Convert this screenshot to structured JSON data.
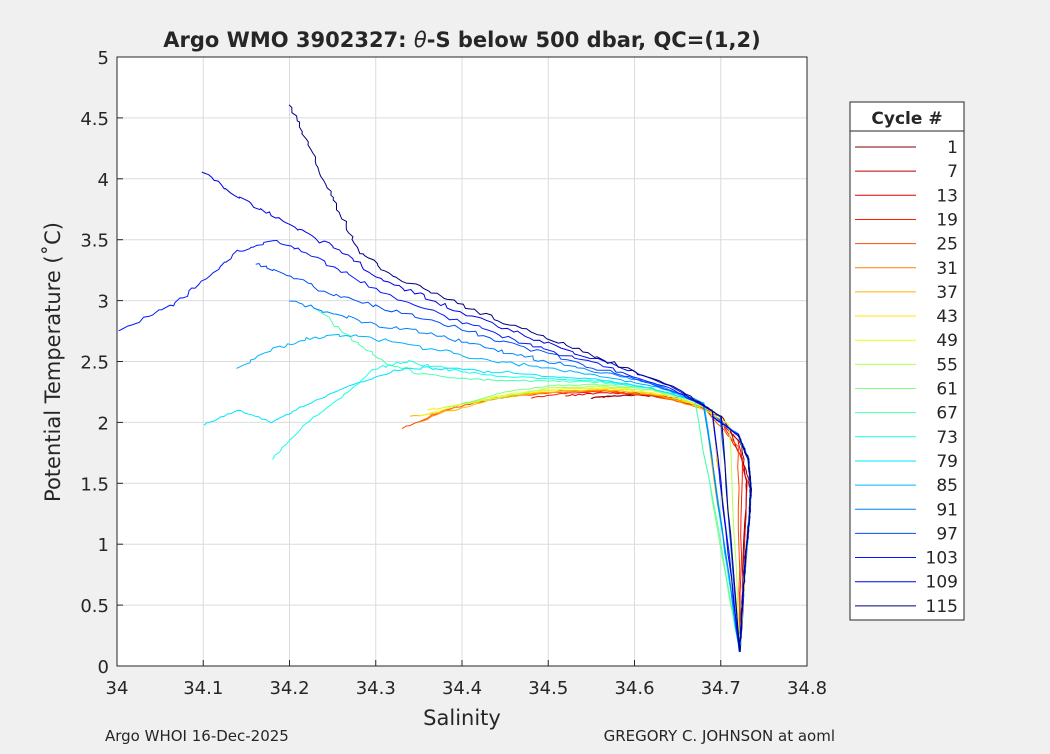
{
  "chart_data": {
    "type": "line",
    "title_parts": {
      "prefix": "Argo WMO 3902327: ",
      "theta": "θ",
      "suffix": "-S below 500 dbar,  QC=(1,2)"
    },
    "xlabel": "Salinity",
    "ylabel": "Potential Temperature (˚C)",
    "xlim": [
      34.0,
      34.8
    ],
    "ylim": [
      0,
      5
    ],
    "xticks": [
      "34",
      "34.1",
      "34.2",
      "34.3",
      "34.4",
      "34.5",
      "34.6",
      "34.7",
      "34.8"
    ],
    "yticks": [
      "0",
      "0.5",
      "1",
      "1.5",
      "2",
      "2.5",
      "3",
      "3.5",
      "4",
      "4.5",
      "5"
    ],
    "grid": true,
    "legend": {
      "title": "Cycle #",
      "position": "outside-right",
      "entries": [
        {
          "label": "1",
          "color": "#800000"
        },
        {
          "label": "7",
          "color": "#b30000"
        },
        {
          "label": "13",
          "color": "#e60000"
        },
        {
          "label": "19",
          "color": "#ff1a00"
        },
        {
          "label": "25",
          "color": "#ff4d00"
        },
        {
          "label": "31",
          "color": "#ff8000"
        },
        {
          "label": "37",
          "color": "#ffb300"
        },
        {
          "label": "43",
          "color": "#ffe600"
        },
        {
          "label": "49",
          "color": "#e6ff1a"
        },
        {
          "label": "55",
          "color": "#b3ff4d"
        },
        {
          "label": "61",
          "color": "#80ff80"
        },
        {
          "label": "67",
          "color": "#4dffb3"
        },
        {
          "label": "73",
          "color": "#1affe6"
        },
        {
          "label": "79",
          "color": "#00e6ff"
        },
        {
          "label": "85",
          "color": "#00b3ff"
        },
        {
          "label": "91",
          "color": "#0080ff"
        },
        {
          "label": "97",
          "color": "#004dff"
        },
        {
          "label": "103",
          "color": "#001aff"
        },
        {
          "label": "109",
          "color": "#0000e6"
        },
        {
          "label": "115",
          "color": "#000080"
        }
      ]
    },
    "deep_branch": [
      [
        34.722,
        0.12
      ],
      [
        34.725,
        0.5
      ],
      [
        34.729,
        0.9
      ],
      [
        34.733,
        1.2
      ],
      [
        34.735,
        1.45
      ],
      [
        34.732,
        1.7
      ],
      [
        34.72,
        1.9
      ],
      [
        34.69,
        2.05
      ],
      [
        34.64,
        2.18
      ],
      [
        34.58,
        2.28
      ]
    ],
    "series": [
      {
        "name": "1",
        "values": [
          [
            34.55,
            2.2
          ],
          [
            34.58,
            2.22
          ],
          [
            34.62,
            2.22
          ],
          [
            34.66,
            2.18
          ],
          [
            34.7,
            2.05
          ],
          [
            34.725,
            1.8
          ],
          [
            34.73,
            1.45
          ]
        ]
      },
      {
        "name": "7",
        "values": [
          [
            34.55,
            2.2
          ],
          [
            34.6,
            2.23
          ],
          [
            34.64,
            2.2
          ],
          [
            34.68,
            2.12
          ],
          [
            34.71,
            1.95
          ],
          [
            34.73,
            1.6
          ],
          [
            34.735,
            1.4
          ]
        ]
      },
      {
        "name": "13",
        "values": [
          [
            34.52,
            2.22
          ],
          [
            34.56,
            2.24
          ],
          [
            34.6,
            2.24
          ],
          [
            34.65,
            2.2
          ],
          [
            34.69,
            2.08
          ],
          [
            34.72,
            1.85
          ],
          [
            34.73,
            1.5
          ]
        ]
      },
      {
        "name": "19",
        "values": [
          [
            34.48,
            2.2
          ],
          [
            34.52,
            2.24
          ],
          [
            34.57,
            2.26
          ],
          [
            34.62,
            2.22
          ],
          [
            34.67,
            2.15
          ],
          [
            34.7,
            2.02
          ],
          [
            34.725,
            1.7
          ]
        ]
      },
      {
        "name": "25",
        "values": [
          [
            34.33,
            1.95
          ],
          [
            34.38,
            2.1
          ],
          [
            34.44,
            2.2
          ],
          [
            34.5,
            2.24
          ],
          [
            34.56,
            2.26
          ],
          [
            34.62,
            2.22
          ],
          [
            34.68,
            2.12
          ],
          [
            34.72,
            1.8
          ]
        ]
      },
      {
        "name": "31",
        "values": [
          [
            34.35,
            2.0
          ],
          [
            34.4,
            2.15
          ],
          [
            34.46,
            2.22
          ],
          [
            34.52,
            2.26
          ],
          [
            34.58,
            2.26
          ],
          [
            34.64,
            2.2
          ],
          [
            34.69,
            2.08
          ]
        ]
      },
      {
        "name": "37",
        "values": [
          [
            34.34,
            2.05
          ],
          [
            34.39,
            2.1
          ],
          [
            34.44,
            2.2
          ],
          [
            34.5,
            2.25
          ],
          [
            34.56,
            2.27
          ],
          [
            34.62,
            2.24
          ],
          [
            34.68,
            2.13
          ]
        ]
      },
      {
        "name": "43",
        "values": [
          [
            34.36,
            2.1
          ],
          [
            34.42,
            2.17
          ],
          [
            34.47,
            2.24
          ],
          [
            34.53,
            2.28
          ],
          [
            34.59,
            2.27
          ],
          [
            34.65,
            2.2
          ],
          [
            34.7,
            2.05
          ]
        ]
      },
      {
        "name": "49",
        "values": [
          [
            34.35,
            2.05
          ],
          [
            34.4,
            2.15
          ],
          [
            34.46,
            2.24
          ],
          [
            34.52,
            2.28
          ],
          [
            34.58,
            2.28
          ],
          [
            34.64,
            2.22
          ],
          [
            34.69,
            2.1
          ]
        ]
      },
      {
        "name": "55",
        "values": [
          [
            34.38,
            2.12
          ],
          [
            34.44,
            2.2
          ],
          [
            34.5,
            2.28
          ],
          [
            34.56,
            2.3
          ],
          [
            34.62,
            2.26
          ],
          [
            34.67,
            2.16
          ],
          [
            34.71,
            1.98
          ]
        ]
      },
      {
        "name": "61",
        "values": [
          [
            34.4,
            2.15
          ],
          [
            34.45,
            2.25
          ],
          [
            34.5,
            2.3
          ],
          [
            34.56,
            2.31
          ],
          [
            34.62,
            2.27
          ],
          [
            34.67,
            2.17
          ]
        ]
      },
      {
        "name": "67",
        "values": [
          [
            34.23,
            2.95
          ],
          [
            34.27,
            2.7
          ],
          [
            34.31,
            2.5
          ],
          [
            34.35,
            2.4
          ],
          [
            34.4,
            2.36
          ],
          [
            34.45,
            2.34
          ],
          [
            34.5,
            2.34
          ],
          [
            34.56,
            2.33
          ],
          [
            34.62,
            2.28
          ],
          [
            34.67,
            2.18
          ]
        ]
      },
      {
        "name": "73",
        "values": [
          [
            34.18,
            1.7
          ],
          [
            34.22,
            2.0
          ],
          [
            34.26,
            2.2
          ],
          [
            34.3,
            2.45
          ],
          [
            34.34,
            2.5
          ],
          [
            34.38,
            2.44
          ],
          [
            34.44,
            2.38
          ],
          [
            34.5,
            2.36
          ],
          [
            34.56,
            2.34
          ],
          [
            34.62,
            2.28
          ],
          [
            34.68,
            2.16
          ]
        ]
      },
      {
        "name": "79",
        "values": [
          [
            34.1,
            1.98
          ],
          [
            34.14,
            2.1
          ],
          [
            34.18,
            2.0
          ],
          [
            34.22,
            2.15
          ],
          [
            34.27,
            2.3
          ],
          [
            34.32,
            2.42
          ],
          [
            34.37,
            2.45
          ],
          [
            34.43,
            2.42
          ],
          [
            34.5,
            2.38
          ],
          [
            34.56,
            2.35
          ],
          [
            34.62,
            2.28
          ],
          [
            34.68,
            2.16
          ]
        ]
      },
      {
        "name": "85",
        "values": [
          [
            34.14,
            2.45
          ],
          [
            34.18,
            2.6
          ],
          [
            34.22,
            2.68
          ],
          [
            34.27,
            2.72
          ],
          [
            34.32,
            2.66
          ],
          [
            34.38,
            2.58
          ],
          [
            34.44,
            2.5
          ],
          [
            34.5,
            2.44
          ],
          [
            34.56,
            2.38
          ],
          [
            34.62,
            2.3
          ],
          [
            34.68,
            2.16
          ]
        ]
      },
      {
        "name": "91",
        "values": [
          [
            34.2,
            3.0
          ],
          [
            34.25,
            2.9
          ],
          [
            34.3,
            2.8
          ],
          [
            34.35,
            2.75
          ],
          [
            34.4,
            2.66
          ],
          [
            34.45,
            2.58
          ],
          [
            34.5,
            2.5
          ],
          [
            34.56,
            2.42
          ],
          [
            34.62,
            2.32
          ],
          [
            34.68,
            2.16
          ]
        ]
      },
      {
        "name": "97",
        "values": [
          [
            34.16,
            3.3
          ],
          [
            34.2,
            3.2
          ],
          [
            34.25,
            3.05
          ],
          [
            34.3,
            2.95
          ],
          [
            34.36,
            2.85
          ],
          [
            34.42,
            2.72
          ],
          [
            34.48,
            2.6
          ],
          [
            34.54,
            2.48
          ],
          [
            34.6,
            2.36
          ],
          [
            34.66,
            2.22
          ],
          [
            34.7,
            2.05
          ]
        ]
      },
      {
        "name": "103",
        "values": [
          [
            34.0,
            2.75
          ],
          [
            34.06,
            2.95
          ],
          [
            34.1,
            3.15
          ],
          [
            34.14,
            3.4
          ],
          [
            34.18,
            3.5
          ],
          [
            34.22,
            3.4
          ],
          [
            34.27,
            3.2
          ],
          [
            34.33,
            3.0
          ],
          [
            34.4,
            2.82
          ],
          [
            34.46,
            2.68
          ],
          [
            34.52,
            2.55
          ],
          [
            34.58,
            2.42
          ],
          [
            34.64,
            2.28
          ],
          [
            34.69,
            2.1
          ]
        ]
      },
      {
        "name": "109",
        "values": [
          [
            34.1,
            4.05
          ],
          [
            34.14,
            3.85
          ],
          [
            34.18,
            3.7
          ],
          [
            34.22,
            3.55
          ],
          [
            34.26,
            3.4
          ],
          [
            34.3,
            3.2
          ],
          [
            34.35,
            3.05
          ],
          [
            34.4,
            2.9
          ],
          [
            34.46,
            2.75
          ],
          [
            34.52,
            2.6
          ],
          [
            34.58,
            2.46
          ],
          [
            34.64,
            2.3
          ],
          [
            34.69,
            2.1
          ]
        ]
      },
      {
        "name": "115",
        "values": [
          [
            34.2,
            4.6
          ],
          [
            34.22,
            4.3
          ],
          [
            34.24,
            4.0
          ],
          [
            34.26,
            3.7
          ],
          [
            34.28,
            3.4
          ],
          [
            34.32,
            3.2
          ],
          [
            34.37,
            3.05
          ],
          [
            34.42,
            2.9
          ],
          [
            34.48,
            2.75
          ],
          [
            34.54,
            2.58
          ],
          [
            34.6,
            2.42
          ],
          [
            34.65,
            2.28
          ],
          [
            34.7,
            2.05
          ]
        ]
      }
    ]
  },
  "footer": {
    "left": "Argo WHOI 16-Dec-2025",
    "right": "GREGORY C. JOHNSON at aoml"
  }
}
